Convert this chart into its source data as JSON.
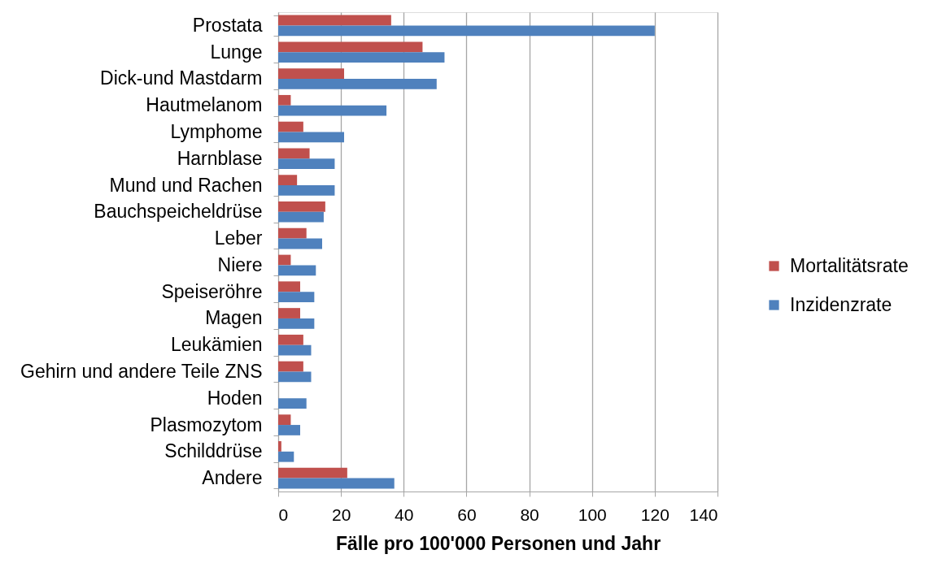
{
  "chart_data": {
    "type": "bar",
    "orientation": "horizontal",
    "categories": [
      "Prostata",
      "Lunge",
      "Dick-und Mastdarm",
      "Hautmelanom",
      "Lymphome",
      "Harnblase",
      "Mund und Rachen",
      "Bauchspeicheldrüse",
      "Leber",
      "Niere",
      "Speiseröhre",
      "Magen",
      "Leukämien",
      "Gehirn und andere Teile ZNS",
      "Hoden",
      "Plasmozytom",
      "Schilddrüse",
      "Andere"
    ],
    "series": [
      {
        "name": "Mortalitätsrate",
        "color": "#c0504d",
        "values": [
          36,
          46,
          21,
          4,
          8,
          10,
          6,
          15,
          9,
          4,
          7,
          7,
          8,
          8,
          null,
          4,
          1,
          22
        ]
      },
      {
        "name": "Inzidenzrate",
        "color": "#4f81bd",
        "values": [
          120,
          53,
          50.5,
          34.5,
          21,
          18,
          18,
          14.5,
          14,
          12,
          11.5,
          11.5,
          10.5,
          10.5,
          9,
          7,
          5,
          37
        ]
      }
    ],
    "xlabel": "Fälle pro 100'000 Personen und Jahr",
    "xlim": [
      0,
      140
    ],
    "xticks": [
      0,
      20,
      40,
      60,
      80,
      100,
      120,
      140
    ],
    "grid": "x",
    "legend": "right"
  }
}
